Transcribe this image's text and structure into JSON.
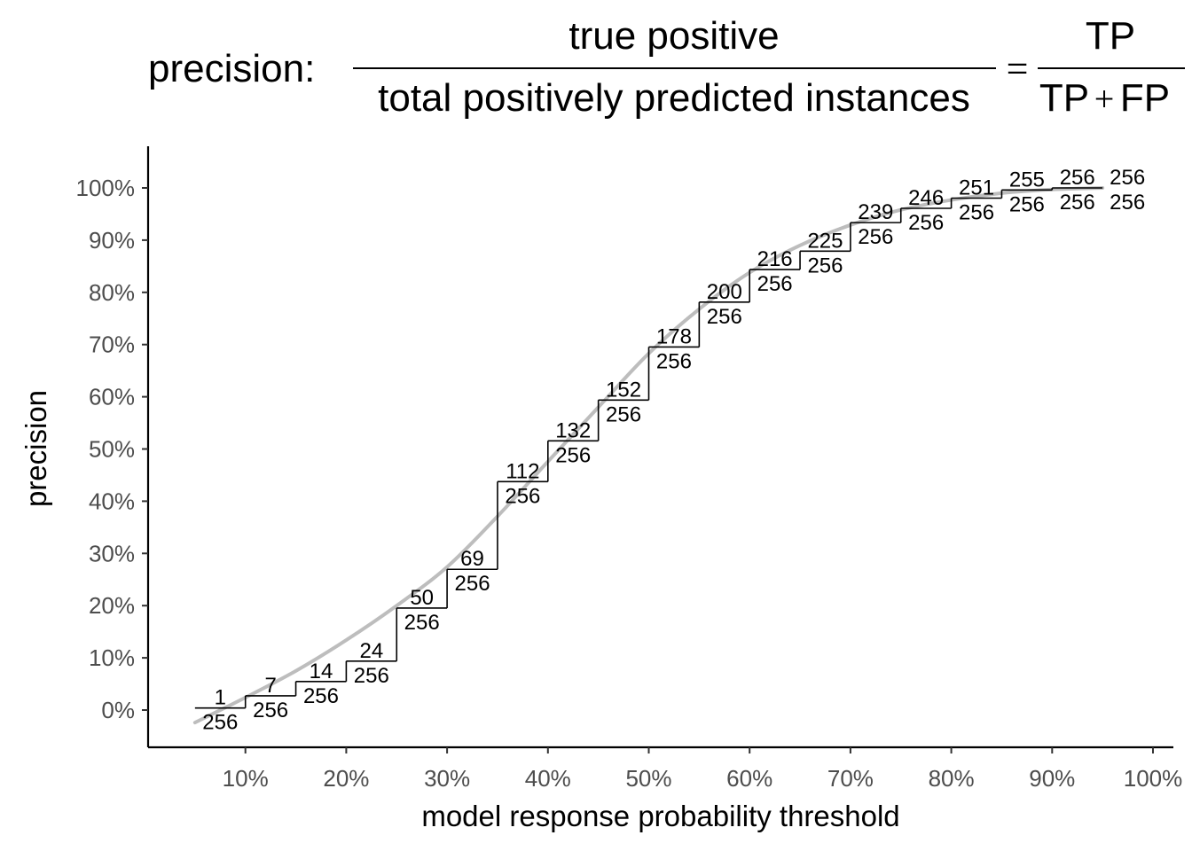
{
  "formula": {
    "lead": "precision:",
    "numerator": "true positive",
    "denominator": "total positively predicted instances",
    "equals": "=",
    "rhs_numerator": "TP",
    "rhs_den_a": "TP",
    "rhs_plus": "+",
    "rhs_den_b": "FP"
  },
  "chart_data": {
    "type": "line",
    "title": "",
    "xlabel": "model response probability threshold",
    "ylabel": "precision",
    "xlim": [
      0,
      1
    ],
    "ylim": [
      -0.07,
      1.07
    ],
    "x_ticks": [
      0.1,
      0.2,
      0.3,
      0.4,
      0.5,
      0.6,
      0.7,
      0.8,
      0.9,
      1.0
    ],
    "x_tick_labels": [
      "10%",
      "20%",
      "30%",
      "40%",
      "50%",
      "60%",
      "70%",
      "80%",
      "90%",
      "100%"
    ],
    "y_ticks": [
      0,
      0.1,
      0.2,
      0.3,
      0.4,
      0.5,
      0.6,
      0.7,
      0.8,
      0.9,
      1.0
    ],
    "y_tick_labels": [
      "0%",
      "10%",
      "20%",
      "30%",
      "40%",
      "50%",
      "60%",
      "70%",
      "80%",
      "90%",
      "100%"
    ],
    "grid": false,
    "step_series": {
      "x": [
        0.05,
        0.1,
        0.15,
        0.2,
        0.25,
        0.3,
        0.35,
        0.4,
        0.45,
        0.5,
        0.55,
        0.6,
        0.65,
        0.7,
        0.75,
        0.8,
        0.85,
        0.9,
        0.95
      ],
      "numerators": [
        1,
        7,
        14,
        24,
        50,
        69,
        112,
        132,
        152,
        178,
        200,
        216,
        225,
        239,
        246,
        251,
        255,
        256,
        256
      ],
      "denominator": 256,
      "labels": [
        "1",
        "7",
        "14",
        "24",
        "50",
        "69",
        "112",
        "132",
        "152",
        "178",
        "200",
        "216",
        "225",
        "239",
        "246",
        "251",
        "255",
        "256",
        "256"
      ],
      "denominator_label": "256"
    },
    "smooth_series": {
      "color": "#bdbdbd",
      "x": [
        0.05,
        0.1,
        0.15,
        0.2,
        0.25,
        0.3,
        0.35,
        0.4,
        0.45,
        0.5,
        0.55,
        0.6,
        0.65,
        0.7,
        0.75,
        0.8,
        0.85,
        0.9,
        0.95
      ],
      "y": [
        -0.024,
        0.024,
        0.075,
        0.134,
        0.2,
        0.274,
        0.371,
        0.476,
        0.58,
        0.683,
        0.768,
        0.838,
        0.89,
        0.929,
        0.958,
        0.977,
        0.99,
        0.997,
        1.0
      ]
    }
  }
}
